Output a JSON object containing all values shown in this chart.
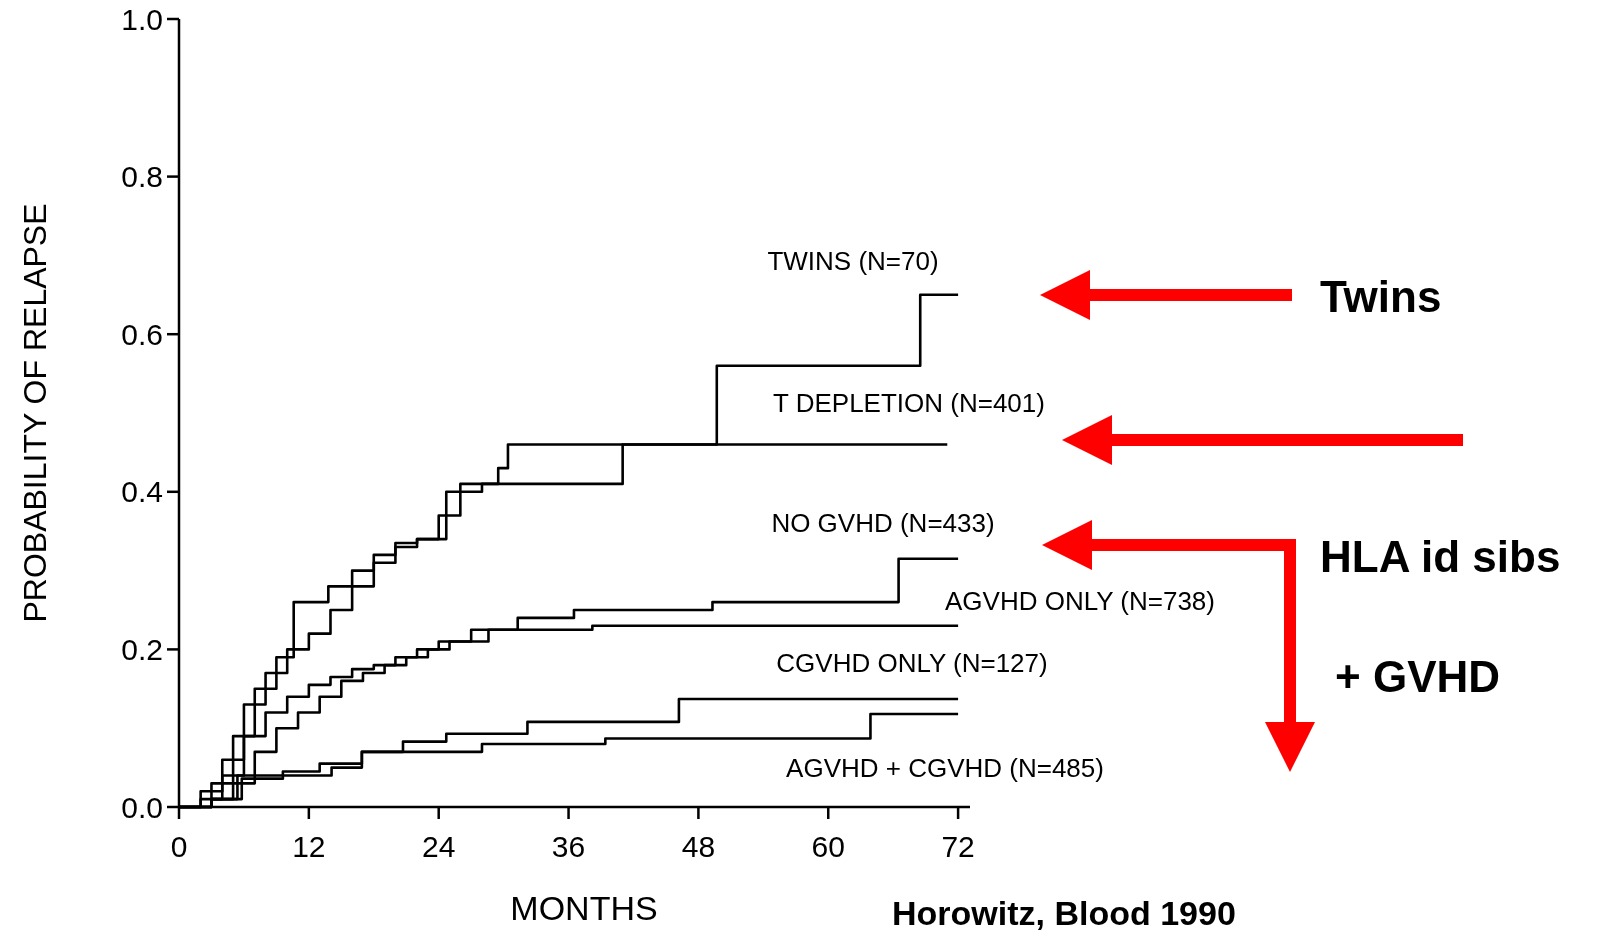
{
  "chart_data": {
    "type": "step",
    "xlabel": "MONTHS",
    "ylabel": "PROBABILITY OF RELAPSE",
    "xlim": [
      0,
      73.1
    ],
    "xticks": [
      0,
      12,
      24,
      36,
      48,
      60,
      72
    ],
    "ylim": [
      0,
      1
    ],
    "yticks": [
      {
        "value": 0,
        "label": "0.0"
      },
      0.2,
      0.4,
      0.6,
      0.8,
      {
        "value": 1,
        "label": "1.0"
      }
    ],
    "grid": false,
    "line_style": "solid",
    "series": [
      {
        "name": "TWINS (N=70)",
        "color": "#000000",
        "x": [
          0,
          3,
          5,
          7,
          9,
          10.6,
          13.8,
          16,
          18,
          20,
          22,
          24.7,
          28,
          29.5,
          30.4,
          49.7,
          68.5,
          72
        ],
        "values": [
          0,
          0.03,
          0.09,
          0.15,
          0.19,
          0.26,
          0.28,
          0.3,
          0.32,
          0.335,
          0.34,
          0.4,
          0.41,
          0.43,
          0.46,
          0.56,
          0.65,
          0.65
        ]
      },
      {
        "name": "T DEPLETION (N=401)",
        "color": "#000000",
        "x": [
          0,
          2,
          4,
          6,
          8,
          10,
          12,
          14,
          16,
          18,
          20,
          22,
          24,
          26,
          38,
          41,
          71
        ],
        "values": [
          0,
          0.02,
          0.06,
          0.13,
          0.17,
          0.2,
          0.22,
          0.25,
          0.28,
          0.31,
          0.33,
          0.34,
          0.37,
          0.41,
          0.41,
          0.46,
          0.46
        ]
      },
      {
        "name": "NO GVHD (N=433)",
        "color": "#000000",
        "x": [
          0,
          2,
          4,
          6,
          8,
          10,
          12,
          14,
          16,
          18,
          20,
          22,
          24,
          27,
          31.3,
          36.5,
          49.3,
          66.5,
          72
        ],
        "values": [
          0,
          0.01,
          0.04,
          0.09,
          0.12,
          0.14,
          0.155,
          0.165,
          0.175,
          0.18,
          0.19,
          0.2,
          0.21,
          0.225,
          0.24,
          0.25,
          0.26,
          0.315,
          0.315
        ]
      },
      {
        "name": "AGVHD ONLY (N=738)",
        "color": "#000000",
        "x": [
          0,
          3,
          5,
          7,
          9,
          11,
          13,
          15,
          17,
          19,
          21,
          23,
          25,
          28.6,
          38.2,
          72
        ],
        "values": [
          0,
          0.01,
          0.03,
          0.07,
          0.1,
          0.12,
          0.14,
          0.16,
          0.17,
          0.18,
          0.19,
          0.2,
          0.21,
          0.225,
          0.23,
          0.23
        ]
      },
      {
        "name": "CGVHD ONLY (N=127)",
        "color": "#000000",
        "x": [
          0,
          3,
          5.4,
          10,
          14.1,
          16.9,
          20.7,
          24.7,
          32.2,
          46.2,
          72
        ],
        "values": [
          0,
          0.01,
          0.04,
          0.04,
          0.05,
          0.07,
          0.083,
          0.093,
          0.108,
          0.137,
          0.137
        ]
      },
      {
        "name": "AGVHD + CGVHD (N=485)",
        "color": "#000000",
        "x": [
          0,
          3,
          5.8,
          9.6,
          13,
          16.9,
          28,
          39.4,
          63.9,
          72
        ],
        "values": [
          0,
          0.01,
          0.036,
          0.045,
          0.055,
          0.07,
          0.08,
          0.087,
          0.118,
          0.118
        ]
      }
    ],
    "annotations": [
      "Twins",
      "HLA id sibs",
      "+ GVHD",
      "Horowitz, Blood 1990"
    ]
  }
}
